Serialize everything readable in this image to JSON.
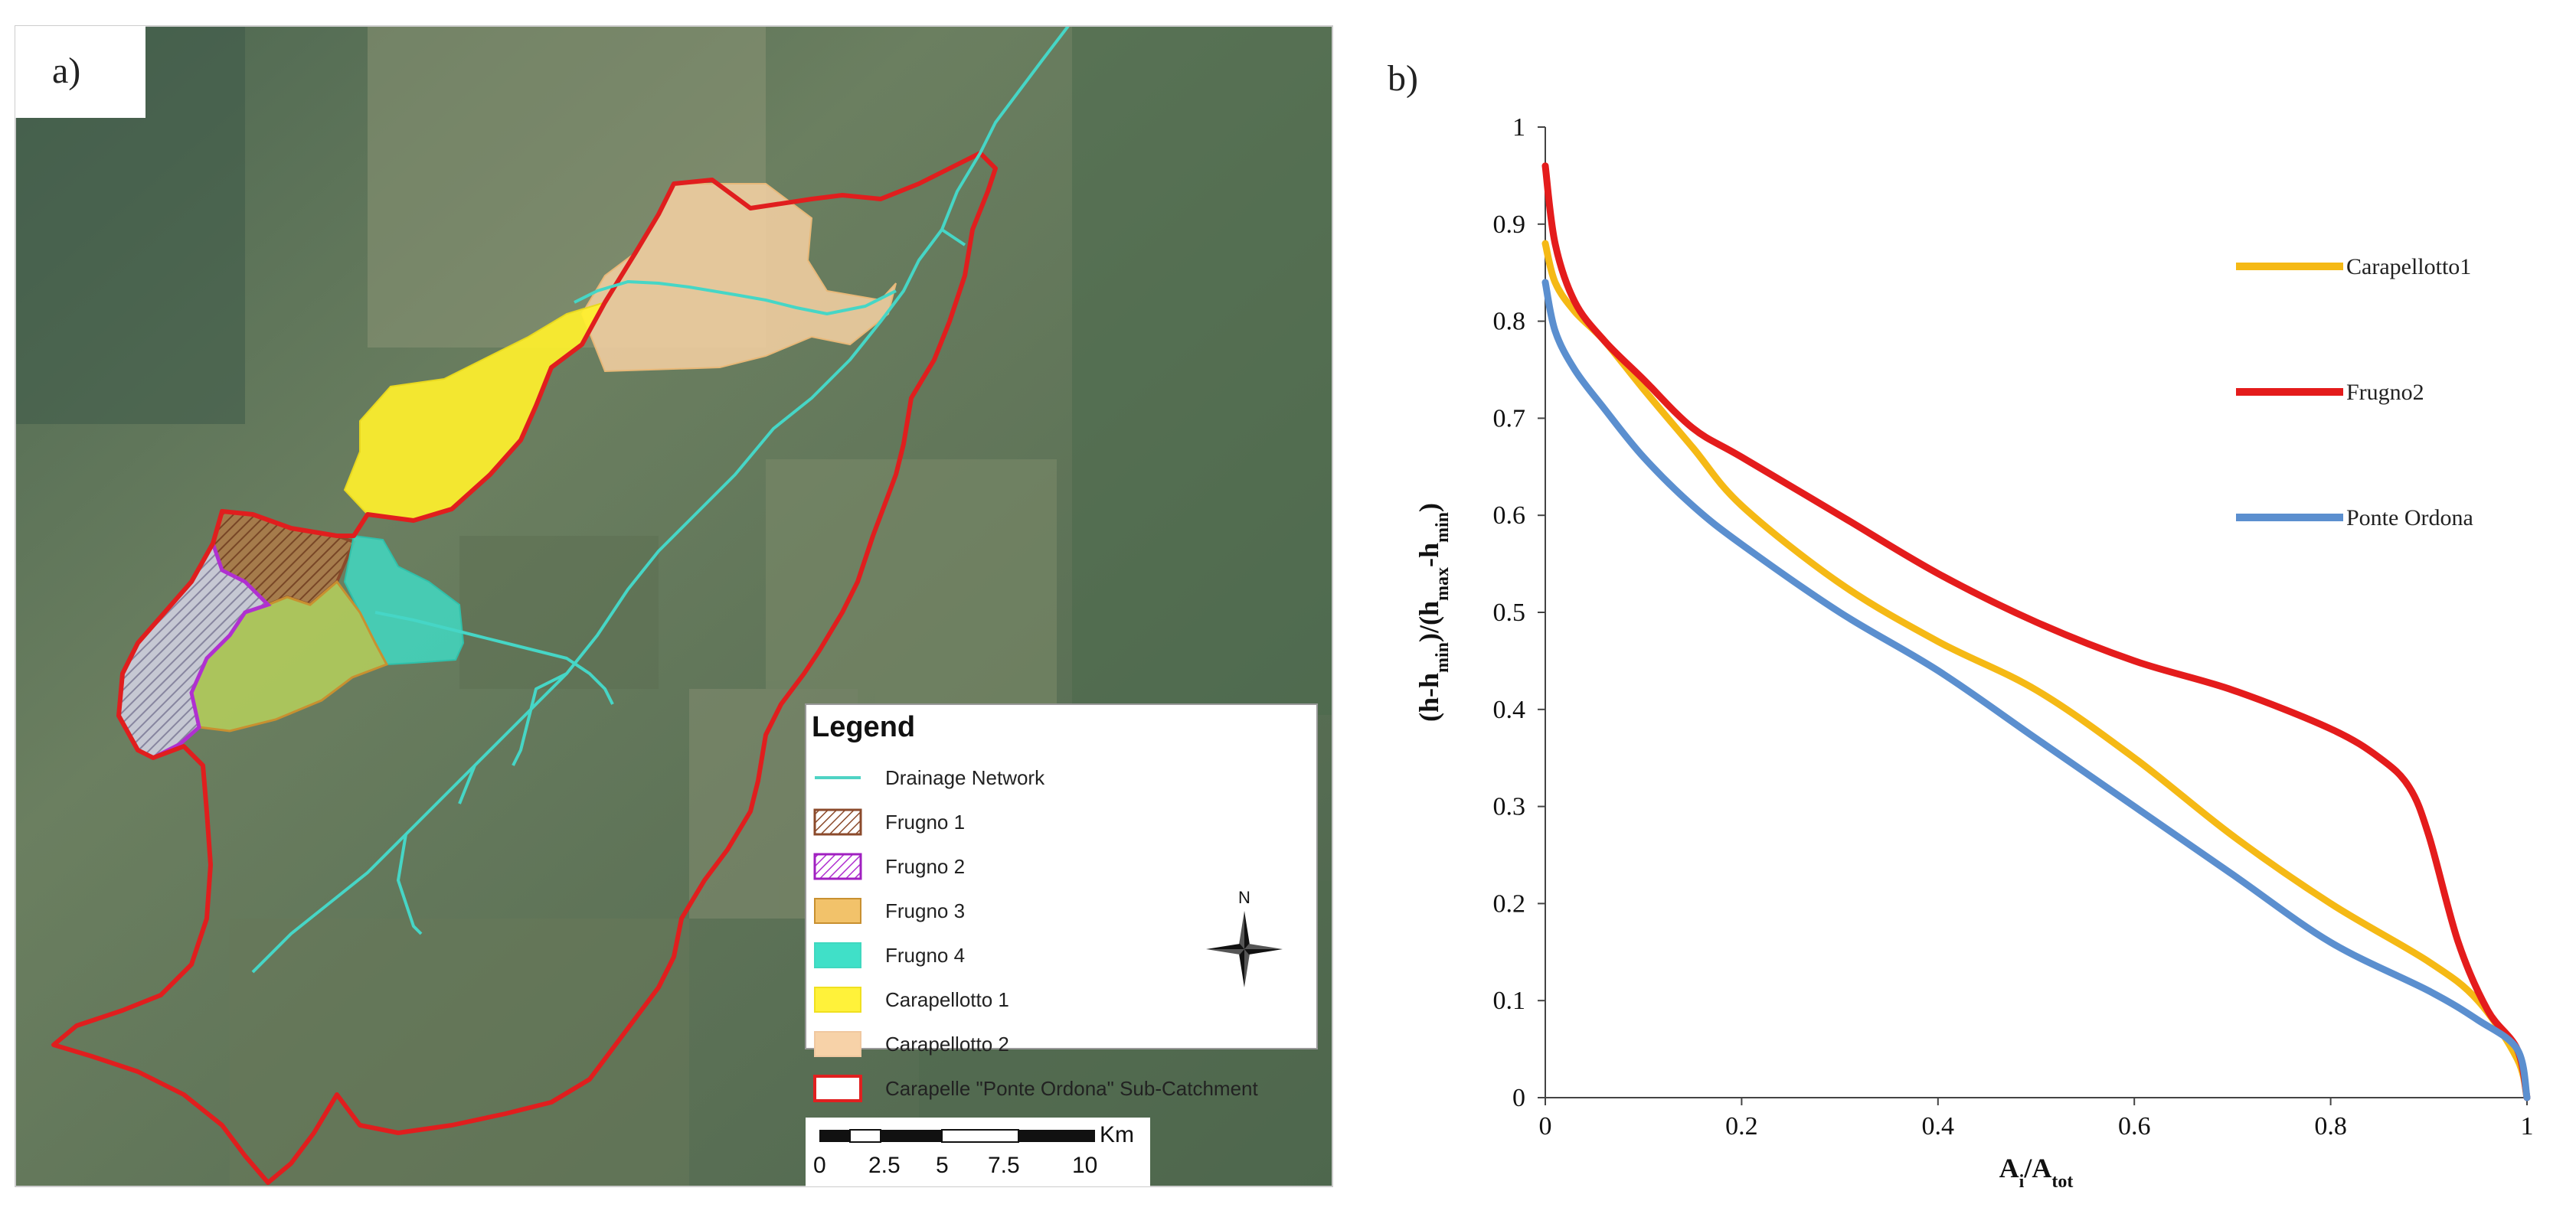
{
  "panel_a": {
    "label": "a)",
    "legend": {
      "title": "Legend",
      "items": [
        {
          "label": "Drainage Network",
          "kind": "line",
          "color": "#4fd3c4"
        },
        {
          "label": "Frugno 1",
          "kind": "hatch",
          "color": "#8b4a2b",
          "fill": "#a07040"
        },
        {
          "label": "Frugno 2",
          "kind": "hatch",
          "color": "#a020c0",
          "fill": "#c070d0"
        },
        {
          "label": "Frugno 3",
          "kind": "fill",
          "color": "#c89030",
          "fill": "#f2c26a"
        },
        {
          "label": "Frugno 4",
          "kind": "fill",
          "color": "#40d8c0",
          "fill": "#40e0c8"
        },
        {
          "label": "Carapellotto 1",
          "kind": "fill",
          "color": "#f0e020",
          "fill": "#fff23a"
        },
        {
          "label": "Carapellotto 2",
          "kind": "fill",
          "color": "#f0c8a0",
          "fill": "#f7d2a8"
        },
        {
          "label": "Carapelle \"Ponte Ordona\" Sub-Catchment",
          "kind": "outline",
          "color": "#e02020"
        }
      ]
    },
    "north_label": "N",
    "scale_bar": {
      "unit": "Km",
      "labels": [
        "0",
        "2.5",
        "5",
        "7.5",
        "10"
      ]
    },
    "colors": {
      "boundary": "#e01e1e",
      "drainage": "#46d6c6",
      "terrain": "#566e52"
    }
  },
  "panel_b": {
    "label": "b)",
    "chart_data": {
      "type": "line",
      "xlabel": "A_i/A_tot",
      "ylabel": "(h-h_min)/(h_max-h_min)",
      "xlim": [
        0,
        1
      ],
      "ylim": [
        0,
        1
      ],
      "x_ticks": [
        "0",
        "0.2",
        "0.4",
        "0.6",
        "0.8",
        "1"
      ],
      "y_ticks": [
        "0",
        "0.1",
        "0.2",
        "0.3",
        "0.4",
        "0.5",
        "0.6",
        "0.7",
        "0.8",
        "0.9",
        "1"
      ],
      "legend_position": "right",
      "grid": false,
      "series": [
        {
          "name": "Carapellotto1",
          "color": "#f5b915",
          "x": [
            0,
            0.01,
            0.03,
            0.06,
            0.1,
            0.15,
            0.2,
            0.3,
            0.4,
            0.5,
            0.6,
            0.7,
            0.8,
            0.9,
            0.95,
            0.99,
            1.0
          ],
          "y": [
            0.88,
            0.84,
            0.81,
            0.78,
            0.73,
            0.67,
            0.61,
            0.53,
            0.47,
            0.42,
            0.35,
            0.27,
            0.2,
            0.14,
            0.1,
            0.04,
            0.0
          ]
        },
        {
          "name": "Frugno2",
          "color": "#e41c1c",
          "x": [
            0,
            0.01,
            0.03,
            0.06,
            0.1,
            0.15,
            0.2,
            0.3,
            0.4,
            0.5,
            0.6,
            0.7,
            0.8,
            0.85,
            0.88,
            0.9,
            0.93,
            0.96,
            0.99,
            1.0
          ],
          "y": [
            0.96,
            0.88,
            0.82,
            0.78,
            0.74,
            0.69,
            0.66,
            0.6,
            0.54,
            0.49,
            0.45,
            0.42,
            0.38,
            0.35,
            0.32,
            0.27,
            0.16,
            0.09,
            0.05,
            0.0
          ]
        },
        {
          "name": "Ponte Ordona",
          "color": "#5b8fcf",
          "x": [
            0,
            0.01,
            0.03,
            0.06,
            0.1,
            0.15,
            0.2,
            0.3,
            0.4,
            0.5,
            0.6,
            0.7,
            0.8,
            0.9,
            0.95,
            0.99,
            1.0
          ],
          "y": [
            0.84,
            0.79,
            0.75,
            0.71,
            0.66,
            0.61,
            0.57,
            0.5,
            0.44,
            0.37,
            0.3,
            0.23,
            0.16,
            0.11,
            0.08,
            0.05,
            0.0
          ]
        }
      ]
    }
  }
}
